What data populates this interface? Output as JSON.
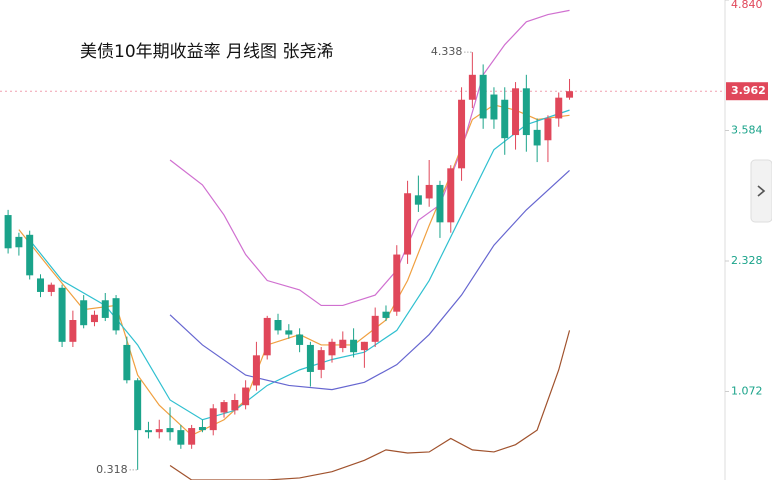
{
  "chart_data": {
    "type": "candlestick",
    "title": "美债10年期收益率 月线图 张尧浠",
    "up_color": "#e0475a",
    "down_color": "#1aa38a",
    "xlim": [
      -0.75,
      66.4
    ],
    "ylim": [
      0.22,
      4.84
    ],
    "yticks": [
      4.84,
      3.584,
      2.328,
      1.072
    ],
    "ytick_labels": [
      "4.840",
      "3.584",
      "2.328",
      "1.072"
    ],
    "last_price": 3.962,
    "open": [
      2.77,
      2.56,
      2.58,
      2.16,
      2.03,
      2.07,
      1.55,
      1.95,
      1.74,
      1.95,
      1.97,
      1.52,
      1.18,
      0.7,
      0.68,
      0.72,
      0.7,
      0.56,
      0.73,
      0.7,
      0.87,
      0.89,
      0.94,
      1.13,
      1.42,
      1.76,
      1.66,
      1.62,
      1.52,
      1.28,
      1.42,
      1.49,
      1.57,
      1.47,
      1.55,
      1.84,
      1.84,
      2.39,
      2.96,
      2.93,
      3.06,
      2.7,
      3.22,
      3.88,
      4.12,
      3.93,
      3.88,
      3.54,
      3.99,
      3.59,
      3.49,
      3.7,
      3.9
    ],
    "high": [
      2.82,
      2.6,
      2.62,
      2.2,
      2.12,
      2.1,
      1.85,
      2.0,
      1.85,
      2.02,
      2.0,
      1.6,
      1.2,
      0.78,
      0.8,
      0.92,
      0.75,
      0.75,
      0.8,
      0.95,
      0.99,
      1.05,
      1.18,
      1.55,
      1.8,
      1.82,
      1.72,
      1.68,
      1.55,
      1.5,
      1.58,
      1.65,
      1.68,
      1.55,
      1.88,
      1.9,
      2.48,
      3.1,
      3.15,
      3.3,
      3.1,
      3.25,
      4.0,
      4.338,
      4.22,
      4.0,
      4.0,
      4.05,
      4.12,
      3.7,
      3.73,
      3.95,
      4.08
    ],
    "low": [
      2.4,
      2.38,
      2.15,
      1.98,
      1.99,
      1.5,
      1.5,
      1.68,
      1.7,
      1.75,
      1.62,
      1.15,
      0.318,
      0.62,
      0.62,
      0.6,
      0.52,
      0.52,
      0.68,
      0.65,
      0.82,
      0.85,
      0.9,
      1.08,
      1.38,
      1.62,
      1.58,
      1.45,
      1.12,
      1.2,
      1.35,
      1.45,
      1.4,
      1.3,
      1.5,
      1.75,
      1.8,
      2.3,
      2.8,
      2.85,
      2.55,
      2.6,
      3.1,
      3.8,
      3.6,
      3.6,
      3.35,
      3.4,
      3.38,
      3.28,
      3.28,
      3.62,
      3.88
    ],
    "close": [
      2.45,
      2.46,
      2.19,
      2.03,
      2.1,
      1.55,
      1.76,
      1.71,
      1.81,
      1.78,
      1.66,
      1.18,
      0.7,
      0.68,
      0.71,
      0.68,
      0.56,
      0.72,
      0.7,
      0.91,
      0.97,
      0.99,
      1.11,
      1.42,
      1.78,
      1.66,
      1.62,
      1.52,
      1.26,
      1.47,
      1.55,
      1.57,
      1.45,
      1.55,
      1.8,
      1.78,
      2.39,
      2.98,
      2.87,
      3.06,
      2.7,
      3.22,
      3.88,
      4.12,
      3.7,
      3.69,
      3.51,
      3.99,
      3.54,
      3.44,
      3.7,
      3.9,
      3.962
    ],
    "series": [
      {
        "color": "#f0a040",
        "x": [
          1,
          4,
          7,
          10,
          12,
          14,
          17,
          20,
          22,
          24,
          27,
          29,
          32,
          35,
          37,
          39,
          41,
          43,
          45,
          47,
          49,
          52
        ],
        "values": [
          2.63,
          2.24,
          1.86,
          1.9,
          1.23,
          0.94,
          0.65,
          0.8,
          0.99,
          1.52,
          1.62,
          1.52,
          1.52,
          1.76,
          2.14,
          2.67,
          3.16,
          3.69,
          3.83,
          3.78,
          3.69,
          3.73
        ]
      },
      {
        "color": "#30c0d0",
        "x": [
          2,
          5,
          9,
          12,
          15,
          18,
          21,
          24,
          27,
          30,
          33,
          36,
          39,
          42,
          45,
          48,
          52
        ],
        "values": [
          2.53,
          2.14,
          1.9,
          1.52,
          0.99,
          0.8,
          0.89,
          1.13,
          1.28,
          1.38,
          1.45,
          1.66,
          2.14,
          2.77,
          3.4,
          3.64,
          3.78
        ]
      },
      {
        "color": "#6666d0",
        "x": [
          15,
          18,
          22,
          26,
          30,
          33,
          36,
          39,
          42,
          45,
          48,
          52
        ],
        "values": [
          1.81,
          1.52,
          1.23,
          1.13,
          1.09,
          1.16,
          1.33,
          1.62,
          2.0,
          2.48,
          2.82,
          3.2
        ]
      },
      {
        "color": "#d070d0",
        "x": [
          15,
          18,
          20,
          22,
          24,
          27,
          29,
          31,
          34,
          36,
          38,
          40,
          42,
          44,
          46,
          48,
          50,
          52
        ],
        "values": [
          3.3,
          3.06,
          2.77,
          2.39,
          2.14,
          2.05,
          1.9,
          1.9,
          2.0,
          2.24,
          2.72,
          2.87,
          3.4,
          4.12,
          4.41,
          4.63,
          4.7,
          4.74
        ]
      },
      {
        "color": "#a0522d",
        "x": [
          15,
          17,
          24,
          27,
          30,
          33,
          35,
          37,
          39,
          41,
          43,
          45,
          47,
          49,
          51,
          52
        ],
        "values": [
          0.36,
          0.22,
          0.22,
          0.24,
          0.3,
          0.41,
          0.51,
          0.48,
          0.49,
          0.62,
          0.51,
          0.49,
          0.56,
          0.7,
          1.28,
          1.66
        ]
      }
    ],
    "annotations": [
      {
        "x": 43,
        "value": 4.338,
        "label": "4.338"
      },
      {
        "x": 12,
        "value": 0.318,
        "label": "0.318"
      }
    ]
  }
}
